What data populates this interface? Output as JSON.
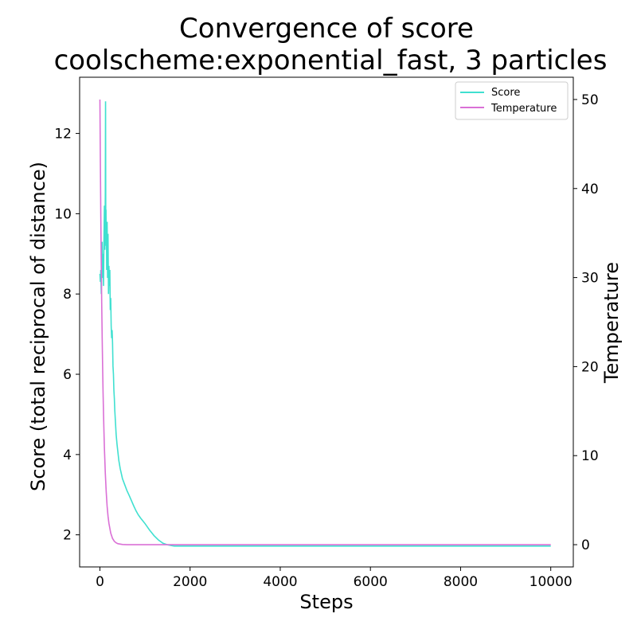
{
  "chart_data": {
    "type": "line",
    "title_line1": "Convergence of score",
    "title_line2": "coolscheme:exponential_fast, 3 particles",
    "xlabel": "Steps",
    "ylabel_left": "Score (total reciprocal of distance)",
    "ylabel_right": "Temperature",
    "xlim": [
      -450,
      10500
    ],
    "ylim_left": [
      1.2,
      13.4
    ],
    "ylim_right": [
      -2.5,
      52.5
    ],
    "x_ticks": [
      0,
      2000,
      4000,
      6000,
      8000,
      10000
    ],
    "y_left_ticks": [
      2,
      4,
      6,
      8,
      10,
      12
    ],
    "y_right_ticks": [
      0,
      10,
      20,
      30,
      40,
      50
    ],
    "legend_position": "top-right",
    "series": [
      {
        "name": "Score",
        "axis": "left",
        "color": "#40E0D0",
        "x": [
          0,
          10,
          20,
          30,
          40,
          50,
          60,
          70,
          80,
          90,
          100,
          110,
          120,
          125,
          130,
          135,
          140,
          145,
          150,
          160,
          170,
          180,
          190,
          200,
          210,
          220,
          230,
          240,
          250,
          260,
          270,
          280,
          290,
          300,
          310,
          320,
          330,
          340,
          350,
          360,
          380,
          400,
          420,
          450,
          480,
          500,
          550,
          600,
          650,
          700,
          750,
          800,
          850,
          900,
          950,
          1000,
          1050,
          1100,
          1150,
          1200,
          1300,
          1400,
          1500,
          1600,
          1650,
          1700,
          2000,
          3000,
          4000,
          5000,
          6000,
          7000,
          8000,
          9000,
          10000
        ],
        "values": [
          8.5,
          8.3,
          8.6,
          8.0,
          8.8,
          9.3,
          8.4,
          9.0,
          8.2,
          9.4,
          10.2,
          9.1,
          10.5,
          12.8,
          9.7,
          10.1,
          9.2,
          9.8,
          8.6,
          9.8,
          8.4,
          9.5,
          8.0,
          8.7,
          8.2,
          8.6,
          7.6,
          7.9,
          7.2,
          6.9,
          7.1,
          6.8,
          6.2,
          6.0,
          5.6,
          5.4,
          5.1,
          4.9,
          4.7,
          4.5,
          4.25,
          4.05,
          3.85,
          3.65,
          3.5,
          3.4,
          3.25,
          3.1,
          2.98,
          2.85,
          2.72,
          2.6,
          2.5,
          2.42,
          2.35,
          2.28,
          2.2,
          2.12,
          2.05,
          1.98,
          1.87,
          1.79,
          1.75,
          1.73,
          1.72,
          1.72,
          1.72,
          1.72,
          1.72,
          1.72,
          1.72,
          1.72,
          1.72,
          1.72,
          1.72
        ]
      },
      {
        "name": "Temperature",
        "axis": "right",
        "color": "#DA70D6",
        "x": [
          0,
          10,
          20,
          30,
          40,
          50,
          60,
          70,
          80,
          90,
          100,
          120,
          140,
          160,
          180,
          200,
          240,
          280,
          320,
          360,
          400,
          500,
          600,
          800,
          1000,
          2000,
          4000,
          6000,
          8000,
          10000
        ],
        "values": [
          50,
          42.9,
          36.8,
          31.6,
          27.1,
          23.3,
          20.0,
          17.1,
          14.7,
          12.6,
          10.8,
          8.0,
          5.9,
          4.3,
          3.2,
          2.4,
          1.3,
          0.7,
          0.38,
          0.21,
          0.11,
          0.02,
          0.0,
          0.0,
          0.0,
          0.0,
          0.0,
          0.0,
          0.0,
          0.0
        ]
      }
    ]
  }
}
